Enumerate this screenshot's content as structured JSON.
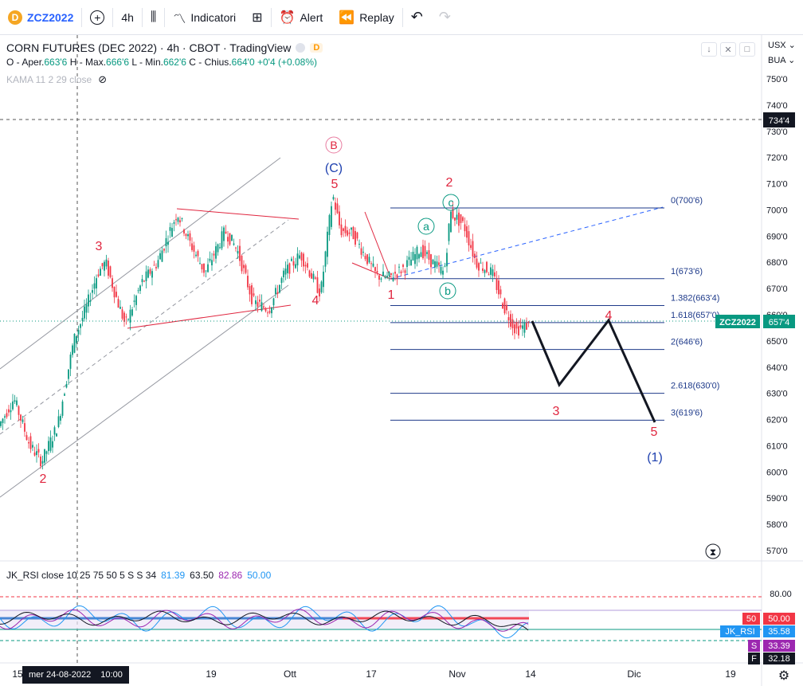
{
  "toolbar": {
    "symbol": "ZCZ2022",
    "symbol_logo": "D",
    "interval": "4h",
    "indicators_label": "Indicatori",
    "alert_label": "Alert",
    "replay_label": "Replay"
  },
  "legend": {
    "title": "CORN FUTURES (DEC 2022) · 4h · CBOT · TradingView",
    "badge": "D",
    "open_label": "O - Aper.",
    "open": "663'6",
    "high_label": "H - Max.",
    "high": "666'6",
    "low_label": "L - Min.",
    "low": "662'6",
    "close_label": "C - Chius.",
    "close": "664'0",
    "change": "+0'4 (+0.08%)",
    "kama": "KAMA 11 2 29 close"
  },
  "axis": {
    "currency": "USX",
    "exchange": "BUA",
    "price_ticks": [
      "750'0",
      "740'0",
      "730'0",
      "720'0",
      "710'0",
      "700'0",
      "690'0",
      "680'0",
      "670'0",
      "660'0",
      "650'0",
      "640'0",
      "630'0",
      "620'0",
      "610'0",
      "600'0",
      "590'0",
      "580'0",
      "570'0"
    ],
    "crosshair_price": "734'4",
    "last_price_label": "ZCZ2022",
    "last_price": "657'4",
    "rsi_ticks": [
      "80.00"
    ],
    "rsi_tags": [
      {
        "name": "50",
        "value": "50.00",
        "color": "#f23645"
      },
      {
        "name": "JK_RSI",
        "value": "35.58",
        "color": "#2196f3"
      },
      {
        "name": "S",
        "value": "33.39",
        "color": "#9c27b0"
      },
      {
        "name": "F",
        "value": "32.18",
        "color": "#131722"
      }
    ],
    "time_ticks": [
      "15",
      "19",
      "Ott",
      "17",
      "Nov",
      "14",
      "Dic",
      "19"
    ],
    "date_tag": "mer 24-08-2022",
    "time_tag": "10:00"
  },
  "fib": [
    {
      "label": "0(700'6)",
      "price": 700.75
    },
    {
      "label": "1(673'6)",
      "price": 673.75
    },
    {
      "label": "1.382(663'4)",
      "price": 663.5
    },
    {
      "label": "1.618(657'0)",
      "price": 657.0
    },
    {
      "label": "2(646'6)",
      "price": 646.75
    },
    {
      "label": "2.618(630'0)",
      "price": 630.0
    },
    {
      "label": "3(619'6)",
      "price": 619.75
    }
  ],
  "wave_labels": {
    "red": [
      "3",
      "2",
      "4",
      "5",
      "1",
      "2",
      "4",
      "3",
      "5"
    ],
    "blue": [
      "(C)",
      "(1)"
    ],
    "pink_circle": "B",
    "green_circle": [
      "a",
      "b",
      "c"
    ]
  },
  "rsi": {
    "name": "JK_RSI close 10 25 75 50 5 S S 34",
    "v1": "81.39",
    "v2": "63.50",
    "v3": "82.86",
    "v4": "50.00"
  },
  "colors": {
    "up": "#089981",
    "down": "#f23645",
    "wave_red": "#e0263f",
    "wave_blue": "#1e40af",
    "fib": "#1e3a8a",
    "accent": "#2962ff"
  }
}
